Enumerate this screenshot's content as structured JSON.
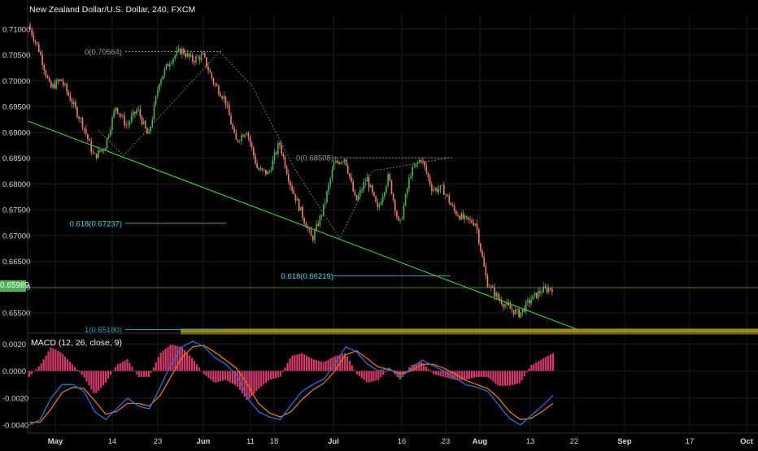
{
  "header": {
    "title": "New Zealand Dollar/U.S. Dollar, 240, FXCM",
    "last_price": "0.65989"
  },
  "macd_panel": {
    "title": "MACD (12, 26, close, 9)"
  },
  "colors": {
    "background": "#000000",
    "up_candle": "#4caf50",
    "down_candle": "#ef7b6e",
    "trendline": "#3fd23f",
    "fib_618": "#2aa3b5",
    "support_band": "#b5a21a",
    "macd_line": "#2f6fd6",
    "signal_line": "#e0752b",
    "histogram": "#d63b6b",
    "grid": "#1c1c1c"
  },
  "chart_data": [
    {
      "type": "candlestick",
      "title": "New Zealand Dollar/U.S. Dollar, 240, FXCM",
      "timeframe": "240",
      "y_ticks": [
        0.71,
        0.705,
        0.7,
        0.695,
        0.69,
        0.685,
        0.68,
        0.675,
        0.67,
        0.665,
        0.66,
        0.655
      ],
      "y_tick_labels": [
        "0.71000",
        "0.70500",
        "0.70000",
        "0.69500",
        "0.69000",
        "0.68500",
        "0.68000",
        "0.67500",
        "0.67000",
        "0.66500",
        "0.66000",
        "0.65500"
      ],
      "x_tick_labels": [
        "May",
        "14",
        "23",
        "Jun",
        "11",
        "18",
        "Jul",
        "16",
        "23",
        "Aug",
        "13",
        "22",
        "Sep",
        "17",
        "Oct"
      ],
      "ylim": [
        0.6514,
        0.7128
      ],
      "last_price": 0.65989,
      "path": [
        0.7108,
        0.7058,
        0.6985,
        0.7002,
        0.6958,
        0.6915,
        0.6852,
        0.6872,
        0.695,
        0.6912,
        0.6945,
        0.689,
        0.7,
        0.704,
        0.706,
        0.704,
        0.7048,
        0.6995,
        0.6965,
        0.6882,
        0.6905,
        0.6828,
        0.682,
        0.688,
        0.68,
        0.6745,
        0.6692,
        0.675,
        0.6838,
        0.6851,
        0.6765,
        0.6812,
        0.675,
        0.6815,
        0.6715,
        0.682,
        0.685,
        0.679,
        0.679,
        0.6748,
        0.673,
        0.6725,
        0.661,
        0.658,
        0.656,
        0.6548,
        0.6575,
        0.6593,
        0.6599
      ],
      "annotations": [
        {
          "label": "0(0.70564)",
          "value": 0.70564
        },
        {
          "label": "0(0.68508)",
          "value": 0.68508
        },
        {
          "label": "0.618(0.67237)",
          "value": 0.67237
        },
        {
          "label": "0.618(0.66219)",
          "value": 0.66219
        },
        {
          "label": "1(0.65180)",
          "value": 0.6518
        }
      ],
      "trendline": {
        "from": 0.6922,
        "to": 0.6518
      }
    },
    {
      "type": "line",
      "title": "MACD (12, 26, close, 9)",
      "y_ticks": [
        0.002,
        0.0,
        -0.002,
        -0.004
      ],
      "y_tick_labels": [
        "0.0020",
        "0.0000",
        "-0.0020",
        "-0.0040"
      ],
      "ylim": [
        -0.0046,
        0.0028
      ],
      "series": [
        {
          "values": [
            -0.004,
            -0.0036,
            -0.002,
            -0.001,
            -0.001,
            -0.0015,
            -0.003,
            -0.0036,
            -0.0028,
            -0.002,
            -0.0026,
            -0.0028,
            -0.0012,
            0.0005,
            0.0018,
            0.0022,
            0.0018,
            0.001,
            0.0005,
            -0.0003,
            -0.002,
            -0.003,
            -0.0034,
            -0.0036,
            -0.0025,
            -0.0015,
            -0.001,
            -0.0006,
            0.0005,
            0.0018,
            0.0014,
            0.0005,
            0.0,
            0.0002,
            -0.0005,
            0.0002,
            0.0008,
            0.0004,
            0.0,
            -0.0005,
            -0.001,
            -0.0012,
            -0.0015,
            -0.0025,
            -0.0035,
            -0.004,
            -0.0033,
            -0.0026,
            -0.0018
          ]
        },
        {
          "values": [
            -0.0038,
            -0.0038,
            -0.0028,
            -0.0016,
            -0.0012,
            -0.0013,
            -0.0022,
            -0.0032,
            -0.003,
            -0.0024,
            -0.0024,
            -0.0026,
            -0.0018,
            -0.0004,
            0.001,
            0.0018,
            0.0019,
            0.0014,
            0.0008,
            0.0002,
            -0.001,
            -0.0024,
            -0.0031,
            -0.0034,
            -0.003,
            -0.0021,
            -0.0014,
            -0.0009,
            0.0,
            0.0012,
            0.0015,
            0.0009,
            0.0003,
            0.0001,
            -0.0002,
            0.0,
            0.0005,
            0.0005,
            0.0002,
            -0.0002,
            -0.0007,
            -0.001,
            -0.0013,
            -0.002,
            -0.003,
            -0.0036,
            -0.0035,
            -0.003,
            -0.0024
          ]
        }
      ]
    }
  ]
}
